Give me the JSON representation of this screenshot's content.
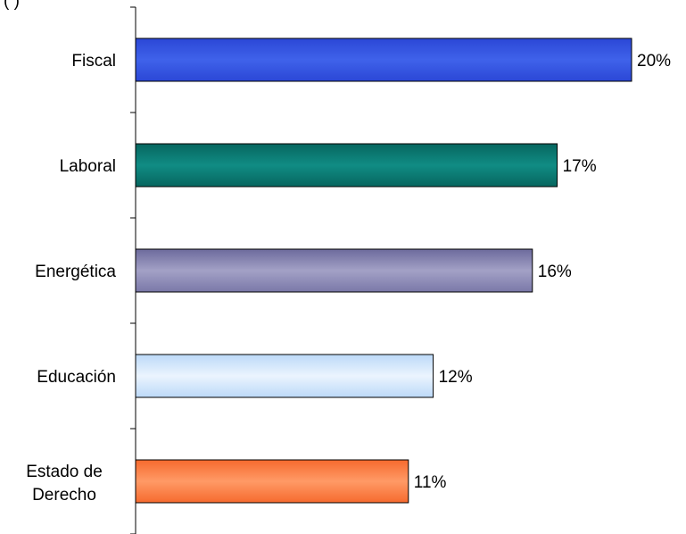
{
  "header": {
    "partial_text": "(                        )"
  },
  "chart_data": {
    "type": "bar",
    "orientation": "horizontal",
    "categories": [
      "Fiscal",
      "Laboral",
      "Energética",
      "Educación",
      "Estado de Derecho"
    ],
    "values": [
      20,
      17,
      16,
      12,
      11
    ],
    "value_labels": [
      "20%",
      "17%",
      "16%",
      "12%",
      "11%"
    ],
    "colors": [
      "#3355dd",
      "#0a7a74",
      "#8a86b4",
      "#cfe5fb",
      "#ff7f47"
    ],
    "grid": false,
    "legend": "none",
    "xlim": [
      0,
      21.5
    ]
  }
}
